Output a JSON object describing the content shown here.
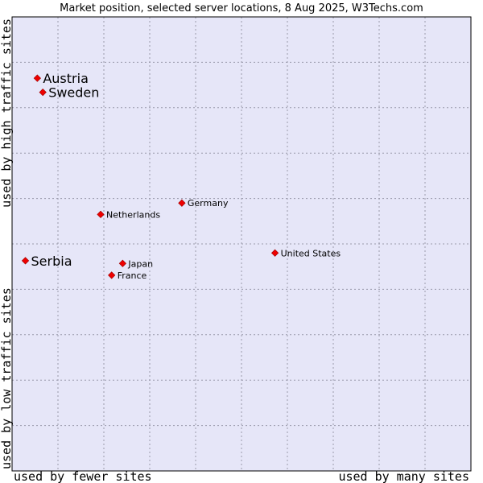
{
  "chart_data": {
    "type": "scatter",
    "title": "Market position, selected server locations, 8 Aug 2025, W3Techs.com",
    "xlabel_left": "used by fewer sites",
    "xlabel_right": "used by many sites",
    "ylabel_bottom": "used by low traffic sites",
    "ylabel_top": "used by high traffic sites",
    "xlim": [
      0,
      10
    ],
    "ylim": [
      0,
      10
    ],
    "grid": true,
    "points": [
      {
        "label": "Austria",
        "x": 0.55,
        "y": 8.65,
        "emphasis": true
      },
      {
        "label": "Sweden",
        "x": 0.67,
        "y": 8.34,
        "emphasis": true
      },
      {
        "label": "Germany",
        "x": 3.7,
        "y": 5.9,
        "emphasis": false
      },
      {
        "label": "Netherlands",
        "x": 1.93,
        "y": 5.65,
        "emphasis": false
      },
      {
        "label": "Serbia",
        "x": 0.29,
        "y": 4.63,
        "emphasis": true
      },
      {
        "label": "United States",
        "x": 5.73,
        "y": 4.8,
        "emphasis": false
      },
      {
        "label": "Japan",
        "x": 2.41,
        "y": 4.57,
        "emphasis": false
      },
      {
        "label": "France",
        "x": 2.17,
        "y": 4.31,
        "emphasis": false
      }
    ]
  },
  "colors": {
    "plot_background": "#e6e6f8",
    "grid": "#9999aa",
    "marker": "#ee0000",
    "marker_edge": "#990000"
  }
}
